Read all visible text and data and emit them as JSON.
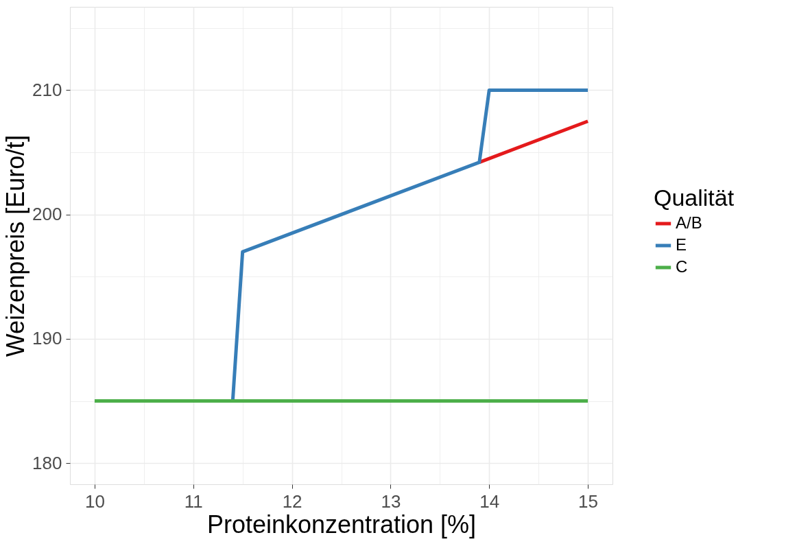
{
  "chart_data": {
    "type": "line",
    "xlabel": "Proteinkonzentration [%]",
    "ylabel": "Weizenpreis [Euro/t]",
    "legend_title": "Qualität",
    "xlim": [
      9.75,
      15.25
    ],
    "ylim": [
      178.3,
      216.7
    ],
    "xticks": [
      10,
      {
        "value": 10.5,
        "label": null
      },
      11,
      {
        "value": 11.5,
        "label": null
      },
      12,
      {
        "value": 12.5,
        "label": null
      },
      13,
      {
        "value": 13.5,
        "label": null
      },
      14,
      {
        "value": 14.5,
        "label": null
      },
      15
    ],
    "yticks": [
      180,
      {
        "value": 185,
        "label": null
      },
      190,
      {
        "value": 195,
        "label": null
      },
      200,
      {
        "value": 205,
        "label": null
      },
      210,
      {
        "value": 215,
        "label": null
      }
    ],
    "grid": true,
    "legend": "right",
    "line_style": "solid",
    "marker": "none",
    "series": [
      {
        "name": "A/B",
        "color": "#e41a1c",
        "x": [
          13.9,
          15
        ],
        "values": [
          204.2,
          207.5
        ]
      },
      {
        "name": "E",
        "color": "#377eb8",
        "x": [
          11.4,
          11.5,
          13.9,
          14,
          15
        ],
        "values": [
          185,
          197,
          204.2,
          210,
          210
        ]
      },
      {
        "name": "C",
        "color": "#4daf4a",
        "x": [
          10,
          15
        ],
        "values": [
          185,
          185
        ]
      }
    ]
  }
}
